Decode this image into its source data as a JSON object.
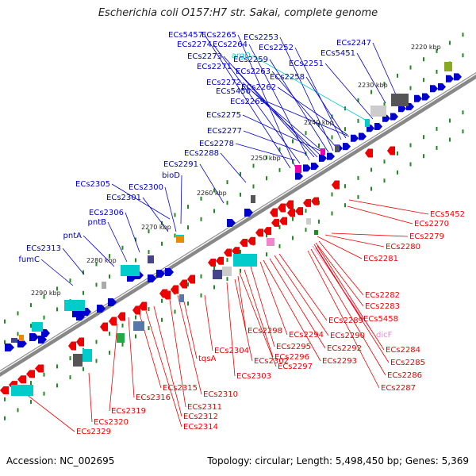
{
  "header": {
    "title": "Escherichia coli O157:H7 str. Sakai, complete genome"
  },
  "footer": {
    "accession": "Accession: NC_002695",
    "topology": "Topology: circular; Length: 5,498,450 bp; Genes: 5,369"
  },
  "colors": {
    "forward": "#0000cc",
    "reverse": "#ee0000",
    "rna_forward": "#00cccc",
    "rna_reverse": "#ee88cc",
    "backbone": "#777777",
    "tick": "#228822"
  },
  "kbp_markers": [
    "2220 kbp",
    "2230 kbp",
    "2240 kbp",
    "2250 kbp",
    "2260 kbp",
    "2270 kbp",
    "2280 kbp",
    "2290 kbp"
  ],
  "upper_labels": [
    "ECs5457",
    "ECs2265",
    "ECs2253",
    "ECs2274",
    "ECs2264",
    "ECs2252",
    "ECs2247",
    "ECs2273",
    "argO",
    "ECs2259",
    "ECs5451",
    "ECs2271",
    "ECs2251",
    "ECs2263",
    "ECs2272",
    "ECs2258",
    "ECs5456",
    "ECs2262",
    "ECs2269",
    "ECs2275",
    "ECs2277",
    "ECs2278",
    "ECs2288",
    "ECs2291",
    "bioD",
    "ECs2300",
    "ECs2305",
    "ECs2301",
    "ECs2306",
    "pntB",
    "pntA",
    "ECs2313",
    "fumC"
  ],
  "right_labels": [
    "ECs5452",
    "ECs2270",
    "ECs2279",
    "ECs2280",
    "ECs2281",
    "ECs2282",
    "ECs2283",
    "ECs5458",
    "dicF",
    "ECs2284",
    "ECs2285",
    "ECs2286",
    "ECs2287"
  ],
  "bottom_labels": [
    "ECs2289",
    "ECs2290",
    "ECs2292",
    "ECs2293",
    "ECs2294",
    "ECs2295",
    "ECs2296",
    "ECs2297",
    "ECs2298",
    "ECs2302",
    "ECs2303",
    "ECs2304",
    "tqsA",
    "ECs2310",
    "ECs2311",
    "ECs2312",
    "ECs2314",
    "ECs2315",
    "ECs2316",
    "ECs2319",
    "ECs2320",
    "ECs2329"
  ]
}
